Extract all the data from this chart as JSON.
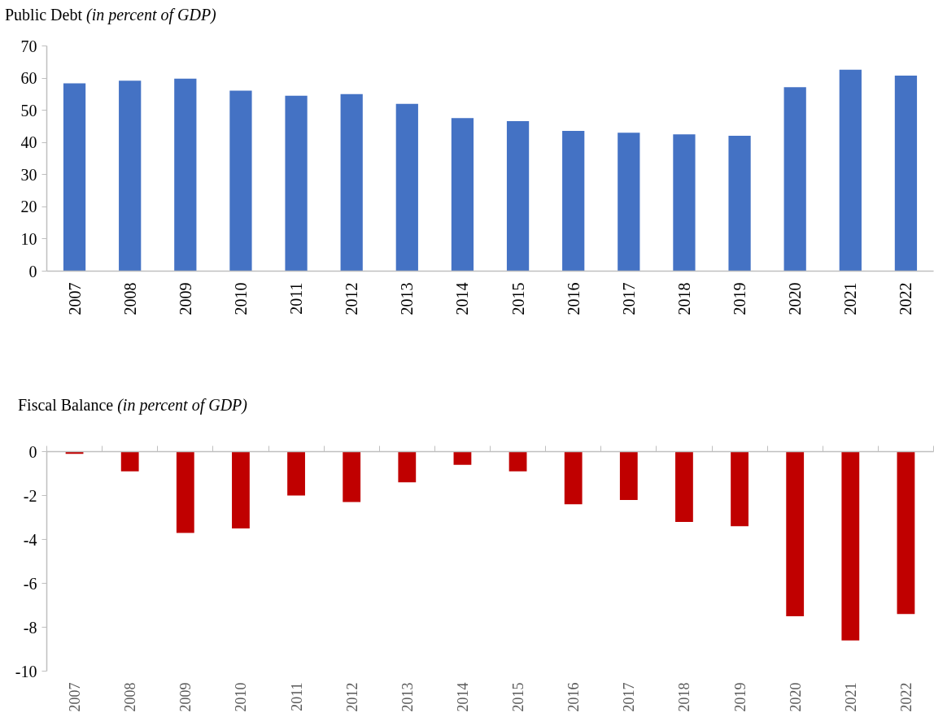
{
  "chart_data": [
    {
      "type": "bar",
      "title": "Public Debt",
      "subtitle": "(in percent of GDP)",
      "categories": [
        "2007",
        "2008",
        "2009",
        "2010",
        "2011",
        "2012",
        "2013",
        "2014",
        "2015",
        "2016",
        "2017",
        "2018",
        "2019",
        "2020",
        "2021",
        "2022"
      ],
      "values": [
        58.4,
        59.2,
        59.8,
        56.1,
        54.5,
        55.0,
        52.0,
        47.6,
        46.6,
        43.6,
        43.0,
        42.5,
        42.1,
        57.2,
        62.6,
        60.8
      ],
      "color": "#4472c4",
      "ylim": [
        0,
        70
      ],
      "yticks": [
        0,
        10,
        20,
        30,
        40,
        50,
        60,
        70
      ],
      "grid": false
    },
    {
      "type": "bar",
      "title": "Fiscal Balance",
      "subtitle": "(in percent of GDP)",
      "categories": [
        "2007",
        "2008",
        "2009",
        "2010",
        "2011",
        "2012",
        "2013",
        "2014",
        "2015",
        "2016",
        "2017",
        "2018",
        "2019",
        "2020",
        "2021",
        "2022"
      ],
      "values": [
        -0.1,
        -0.9,
        -3.7,
        -3.5,
        -2.0,
        -2.3,
        -1.4,
        -0.6,
        -0.9,
        -2.4,
        -2.2,
        -3.2,
        -3.4,
        -7.5,
        -8.6,
        -7.4
      ],
      "color": "#c00000",
      "ylim": [
        -10,
        0
      ],
      "yticks": [
        -10,
        -8,
        -6,
        -4,
        -2,
        0
      ],
      "grid": false
    }
  ]
}
